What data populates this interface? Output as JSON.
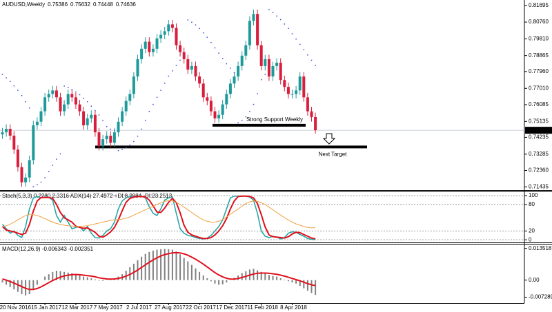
{
  "chart_data": [
    {
      "type": "candlestick",
      "title": "AUDUSD,Weekly",
      "categories": [
        null,
        null,
        null,
        "20 Nov 2016",
        null,
        null,
        null,
        null,
        null,
        null,
        null,
        "15 Jan 2017",
        null,
        null,
        null,
        null,
        null,
        null,
        null,
        "12 Mar 2017",
        null,
        null,
        null,
        null,
        null,
        null,
        null,
        "7 May 2017",
        null,
        null,
        null,
        null,
        null,
        null,
        null,
        "2 Jul 2017",
        null,
        null,
        null,
        null,
        null,
        null,
        null,
        "27 Aug 2017",
        null,
        null,
        null,
        null,
        null,
        null,
        null,
        "22 Oct 2017",
        null,
        null,
        null,
        null,
        null,
        null,
        null,
        "17 Dec 2017",
        null,
        null,
        null,
        null,
        null,
        null,
        null,
        "11 Feb 2018",
        null,
        null,
        null,
        null,
        null,
        null,
        null,
        "8 Apr 2018",
        null,
        null,
        null,
        null,
        null,
        null
      ],
      "candles": {
        "open": [
          0.744,
          0.7452,
          0.7472,
          0.7433,
          0.7354,
          0.7255,
          0.7169,
          0.7196,
          0.7295,
          0.7492,
          0.7512,
          0.7571,
          0.765,
          0.7669,
          0.7689,
          0.765,
          0.7571,
          0.761,
          0.7669,
          0.765,
          0.761,
          0.7571,
          0.7492,
          0.7531,
          0.7551,
          0.7452,
          0.7374,
          0.7413,
          0.7433,
          0.7393,
          0.7452,
          0.7512,
          0.7571,
          0.763,
          0.7669,
          0.7768,
          0.7866,
          0.7925,
          0.7965,
          0.7906,
          0.7925,
          0.7984,
          0.8004,
          0.8024,
          0.8063,
          0.8043,
          0.7945,
          0.7906,
          0.7866,
          0.7807,
          0.7827,
          0.7768,
          0.7728,
          0.765,
          0.763,
          0.7571,
          0.7531,
          0.7551,
          0.761,
          0.7669,
          0.7728,
          0.7768,
          0.7827,
          0.7886,
          0.7945,
          0.8083,
          0.8122,
          0.7945,
          0.7827,
          0.7866,
          0.7768,
          0.7827,
          0.7846,
          0.7748,
          0.7709,
          0.7669,
          0.7669,
          0.7689,
          0.7768,
          0.765,
          0.7571,
          0.75386
        ],
        "high": [
          0.7477,
          0.7497,
          0.7497,
          0.7458,
          0.7379,
          0.728,
          0.7221,
          0.732,
          0.7517,
          0.7537,
          0.7596,
          0.7675,
          0.7694,
          0.7714,
          0.7714,
          0.7675,
          0.7635,
          0.7694,
          0.7694,
          0.7675,
          0.7635,
          0.7596,
          0.7556,
          0.7576,
          0.7576,
          0.7477,
          0.7438,
          0.7458,
          0.7458,
          0.7477,
          0.7537,
          0.7596,
          0.7655,
          0.7694,
          0.7793,
          0.7891,
          0.795,
          0.799,
          0.799,
          0.795,
          0.8009,
          0.8029,
          0.8049,
          0.8088,
          0.8088,
          0.8068,
          0.797,
          0.7931,
          0.7891,
          0.7852,
          0.7852,
          0.7793,
          0.7753,
          0.7675,
          0.7655,
          0.7596,
          0.7576,
          0.7635,
          0.7694,
          0.7753,
          0.7793,
          0.7852,
          0.7911,
          0.797,
          0.8108,
          0.8147,
          0.8147,
          0.797,
          0.7891,
          0.7891,
          0.7852,
          0.7871,
          0.7871,
          0.7773,
          0.7734,
          0.7694,
          0.7714,
          0.7793,
          0.7793,
          0.7675,
          0.7596,
          0.75632
        ],
        "low": [
          0.7415,
          0.7427,
          0.7408,
          0.7329,
          0.723,
          0.7144,
          0.7144,
          0.7171,
          0.727,
          0.7467,
          0.7487,
          0.7546,
          0.7625,
          0.7644,
          0.7625,
          0.7546,
          0.7546,
          0.7585,
          0.7625,
          0.7585,
          0.7546,
          0.7467,
          0.7467,
          0.7506,
          0.7427,
          0.7349,
          0.7349,
          0.7388,
          0.7368,
          0.7368,
          0.7427,
          0.7487,
          0.7546,
          0.7605,
          0.7644,
          0.7743,
          0.7841,
          0.79,
          0.7881,
          0.7881,
          0.79,
          0.7959,
          0.7979,
          0.7999,
          0.8018,
          0.792,
          0.7881,
          0.7841,
          0.7782,
          0.7782,
          0.7743,
          0.7703,
          0.7625,
          0.7605,
          0.7546,
          0.7506,
          0.7506,
          0.7526,
          0.7585,
          0.7644,
          0.7703,
          0.7743,
          0.7802,
          0.7861,
          0.792,
          0.8058,
          0.792,
          0.7802,
          0.7802,
          0.7743,
          0.7743,
          0.7802,
          0.7723,
          0.7684,
          0.7644,
          0.7644,
          0.7644,
          0.7664,
          0.7625,
          0.7546,
          0.7513,
          0.74448
        ],
        "close": [
          0.7452,
          0.7472,
          0.7433,
          0.7354,
          0.7255,
          0.7169,
          0.7196,
          0.7295,
          0.7492,
          0.7512,
          0.7571,
          0.765,
          0.7669,
          0.7689,
          0.765,
          0.7571,
          0.761,
          0.7669,
          0.765,
          0.761,
          0.7571,
          0.7492,
          0.7531,
          0.7551,
          0.7452,
          0.7374,
          0.7413,
          0.7433,
          0.7393,
          0.7452,
          0.7512,
          0.7571,
          0.763,
          0.7669,
          0.7768,
          0.7866,
          0.7925,
          0.7965,
          0.7906,
          0.7925,
          0.7984,
          0.8004,
          0.8024,
          0.8063,
          0.8043,
          0.7945,
          0.7906,
          0.7866,
          0.7807,
          0.7827,
          0.7768,
          0.7728,
          0.765,
          0.763,
          0.7571,
          0.7531,
          0.7551,
          0.761,
          0.7669,
          0.7728,
          0.7768,
          0.7827,
          0.7886,
          0.7945,
          0.8083,
          0.8122,
          0.7945,
          0.7827,
          0.7866,
          0.7768,
          0.7827,
          0.7846,
          0.7748,
          0.7709,
          0.7669,
          0.7669,
          0.7689,
          0.7768,
          0.765,
          0.7571,
          0.7538,
          0.74636
        ]
      },
      "up_color": "#1f9a9a",
      "down_color": "#d81e3c",
      "sar": [
        0.778,
        0.776,
        0.774,
        0.7715,
        0.769,
        0.766,
        0.7625,
        0.759,
        0.7144,
        0.7155,
        0.717,
        0.7195,
        0.723,
        0.7265,
        0.73,
        0.733,
        0.7714,
        0.7705,
        0.7695,
        0.768,
        0.7665,
        0.7645,
        0.7625,
        0.76,
        0.7575,
        0.755,
        0.752,
        0.7485,
        0.747,
        0.746,
        0.7349,
        0.7355,
        0.7365,
        0.738,
        0.74,
        0.743,
        0.747,
        0.752,
        0.757,
        0.761,
        0.765,
        0.769,
        0.773,
        0.777,
        0.78,
        0.783,
        0.786,
        0.7885,
        0.8088,
        0.8075,
        0.806,
        0.804,
        0.8015,
        0.799,
        0.796,
        0.793,
        0.79,
        0.787,
        0.784,
        0.7815,
        0.779,
        0.7506,
        0.752,
        0.754,
        0.757,
        0.761,
        0.767,
        0.775,
        0.778,
        0.8147,
        0.813,
        0.811,
        0.809,
        0.8065,
        0.804,
        0.801,
        0.798,
        0.795,
        0.792,
        0.789,
        0.786,
        0.783
      ],
      "sar_color": "#3a4bd6",
      "levels": [
        {
          "label": "Strong Support Weekly",
          "price": 0.7492
        },
        {
          "label": "Next Target",
          "price": 0.7369
        }
      ],
      "ylim": [
        0.7125,
        0.8201
      ],
      "yticks": [
        0.81695,
        {
          "value": 0.8076,
          "label": "0.80760"
        },
        {
          "value": 0.7981,
          "label": "0.79810"
        },
        0.78865,
        {
          "value": 0.7796,
          "label": "0.77960"
        },
        {
          "value": 0.7701,
          "label": "0.77010"
        },
        0.76085,
        0.75135,
        0.74235,
        0.73285,
        {
          "value": 0.7236,
          "label": "0.72360"
        },
        0.71435
      ]
    },
    {
      "type": "line",
      "title": "Stoch(5,3,3) 0.2280 2.3316 ADX(14) 27.4972 +DI:8.9984 -DI:23.2513",
      "series": [
        {
          "color": "#2aa6a6",
          "values": [
            35,
            25,
            15,
            20,
            10,
            5,
            30,
            70,
            95,
            98,
            95,
            97,
            96,
            90,
            55,
            40,
            55,
            40,
            25,
            28,
            30,
            20,
            30,
            15,
            5,
            4,
            10,
            20,
            25,
            40,
            70,
            88,
            95,
            98,
            97,
            98,
            99,
            95,
            75,
            60,
            55,
            70,
            90,
            95,
            97,
            60,
            25,
            15,
            10,
            8,
            5,
            3,
            2,
            4,
            10,
            20,
            30,
            45,
            70,
            95,
            99,
            99,
            99,
            99,
            97,
            90,
            60,
            20,
            8,
            5,
            8,
            6,
            2,
            5,
            15,
            18,
            17,
            12,
            8,
            3,
            1,
            0.228
          ]
        },
        {
          "color": "#e0101c",
          "values": [
            30,
            22,
            20,
            18,
            15,
            12,
            15,
            35,
            65,
            88,
            96,
            96,
            96,
            94,
            80,
            62,
            50,
            45,
            40,
            31,
            28,
            26,
            27,
            22,
            17,
            8,
            6,
            11,
            18,
            28,
            45,
            66,
            85,
            94,
            97,
            98,
            98,
            97,
            90,
            77,
            63,
            62,
            72,
            85,
            94,
            84,
            61,
            33,
            17,
            11,
            8,
            5,
            3,
            3,
            5,
            11,
            20,
            32,
            48,
            70,
            88,
            98,
            99,
            99,
            98,
            95,
            82,
            57,
            29,
            11,
            7,
            6,
            5,
            4,
            7,
            13,
            17,
            16,
            12,
            8,
            4,
            2.3316
          ]
        },
        {
          "color": "#f0a040",
          "values": [
            30,
            32,
            35,
            40,
            45,
            50,
            55,
            58,
            57,
            55,
            52,
            48,
            44,
            40,
            37,
            35,
            33,
            32,
            31,
            30,
            30,
            31,
            32,
            34,
            36,
            38,
            40,
            42,
            44,
            45,
            46,
            47,
            49,
            52,
            56,
            60,
            64,
            68,
            72,
            76,
            80,
            84,
            87,
            89,
            88,
            85,
            80,
            74,
            68,
            62,
            56,
            50,
            45,
            42,
            40,
            40,
            42,
            46,
            52,
            58,
            64,
            70,
            76,
            82,
            86,
            88,
            87,
            84,
            80,
            74,
            68,
            62,
            56,
            50,
            45,
            40,
            36,
            33,
            30,
            28,
            27,
            27.4972
          ]
        }
      ],
      "ylim": [
        -6,
        108
      ],
      "yticks": [
        100,
        80,
        20,
        0
      ],
      "grid": true
    },
    {
      "type": "macd",
      "title": "MACD(12,26,9) -0.006343 -0.002351",
      "series": [
        {
          "color": "#808080",
          "values": [
            -0.001,
            -0.002,
            -0.003,
            -0.004,
            -0.005,
            -0.006,
            -0.0066,
            -0.006,
            -0.004,
            -0.002,
            0.0,
            0.0015,
            0.0025,
            0.0035,
            0.004,
            0.0038,
            0.0035,
            0.0032,
            0.003,
            0.0025,
            0.002,
            0.0015,
            0.0012,
            0.0008,
            0.0003,
            -0.0002,
            -0.0003,
            -0.0001,
            0.0002,
            0.0008,
            0.0015,
            0.0025,
            0.004,
            0.0055,
            0.007,
            0.0085,
            0.01,
            0.0112,
            0.012,
            0.0126,
            0.013,
            0.0132,
            0.0133,
            0.0132,
            0.013,
            0.0122,
            0.011,
            0.0095,
            0.008,
            0.0065,
            0.005,
            0.0035,
            0.002,
            0.0008,
            -0.0005,
            -0.0015,
            -0.002,
            -0.0018,
            -0.001,
            0.0,
            0.001,
            0.002,
            0.003,
            0.0038,
            0.0045,
            0.0048,
            0.0042,
            0.0035,
            0.003,
            0.0022,
            0.0018,
            0.0015,
            0.0008,
            0.0002,
            -0.0005,
            -0.001,
            -0.0015,
            -0.0025,
            -0.0035,
            -0.0045,
            -0.0055,
            -0.006343
          ]
        },
        {
          "color": "#e0101c",
          "values": [
            0.0005,
            0.0,
            -0.0006,
            -0.0013,
            -0.002,
            -0.0028,
            -0.0035,
            -0.004,
            -0.004,
            -0.0036,
            -0.0029,
            -0.002,
            -0.0011,
            -0.0002,
            0.0006,
            0.0013,
            0.0018,
            0.0021,
            0.0023,
            0.0024,
            0.0023,
            0.0021,
            0.0019,
            0.0017,
            0.0014,
            0.001,
            0.0007,
            0.0005,
            0.0004,
            0.0005,
            0.0007,
            0.0011,
            0.0017,
            0.0024,
            0.0033,
            0.0043,
            0.0054,
            0.0065,
            0.0076,
            0.0086,
            0.0095,
            0.0103,
            0.0109,
            0.0113,
            0.0116,
            0.0117,
            0.0116,
            0.0112,
            0.0106,
            0.0098,
            0.0089,
            0.0079,
            0.0068,
            0.0056,
            0.0044,
            0.0032,
            0.0022,
            0.0014,
            0.0008,
            0.0004,
            0.0004,
            0.0007,
            0.0011,
            0.0016,
            0.0021,
            0.0026,
            0.0029,
            0.003,
            0.003,
            0.0029,
            0.0027,
            0.0025,
            0.0021,
            0.0017,
            0.0012,
            0.0007,
            0.0002,
            -0.0003,
            -0.0009,
            -0.0015,
            -0.002,
            -0.002351
          ]
        }
      ],
      "ylim": [
        -0.0098,
        0.0152
      ],
      "yticks": [
        0.013518,
        {
          "value": 0,
          "label": "0.00"
        },
        -0.007289
      ]
    }
  ]
}
